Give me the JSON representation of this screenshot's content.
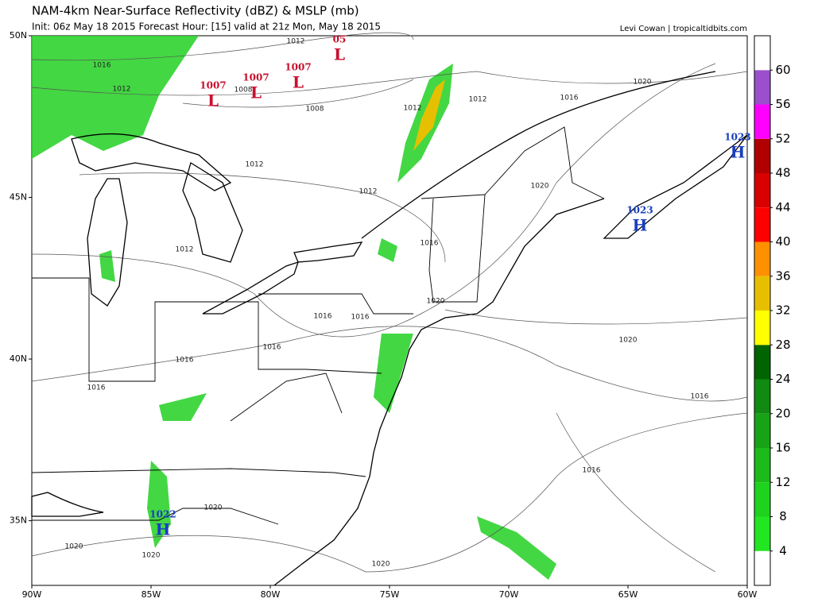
{
  "header": {
    "title": "NAM-4km Near-Surface Reflectivity (dBZ) & MSLP (mb)",
    "subtitle": "Init: 06z May 18 2015   Forecast Hour: [15]   valid at 21z Mon, May 18 2015",
    "credit": "Levi Cowan | tropicaltidbits.com"
  },
  "map": {
    "xlim": [
      -90,
      -60
    ],
    "ylim": [
      33,
      50
    ],
    "xticks": [
      {
        "value": -90,
        "label": "90W"
      },
      {
        "value": -85,
        "label": "85W"
      },
      {
        "value": -80,
        "label": "80W"
      },
      {
        "value": -75,
        "label": "75W"
      },
      {
        "value": -70,
        "label": "70W"
      },
      {
        "value": -65,
        "label": "65W"
      },
      {
        "value": -60,
        "label": "60W"
      }
    ],
    "yticks": [
      {
        "value": 50,
        "label": "50N"
      },
      {
        "value": 45,
        "label": "45N"
      },
      {
        "value": 40,
        "label": "40N"
      },
      {
        "value": 35,
        "label": "35N"
      }
    ]
  },
  "colorbar": {
    "range": [
      0,
      64
    ],
    "ticks": [
      4,
      8,
      12,
      16,
      20,
      24,
      28,
      32,
      36,
      40,
      44,
      48,
      52,
      56,
      60
    ],
    "colors": [
      "#ffffff",
      "#22e622",
      "#1ed21e",
      "#1abb1a",
      "#16a316",
      "#108a10",
      "#006400",
      "#ffff00",
      "#e6c000",
      "#ff9000",
      "#ff0000",
      "#d80000",
      "#b00000",
      "#ff00ff",
      "#9b4fcc",
      "#ffffff"
    ]
  },
  "pressure_centers": [
    {
      "type": "L",
      "value": 1007
    },
    {
      "type": "L",
      "value": 1007
    },
    {
      "type": "L",
      "value": 1007
    },
    {
      "type": "L",
      "value": "05"
    },
    {
      "type": "H",
      "value": 1023
    },
    {
      "type": "H",
      "value": 1023
    },
    {
      "type": "H",
      "value": 1022
    }
  ],
  "contour_labels": [
    1016,
    1012,
    1012,
    1008,
    1008,
    1012,
    1012,
    1012,
    1012,
    1016,
    1020,
    1020,
    1016,
    1012,
    1020,
    1016,
    1016,
    1016,
    1016,
    1016,
    1020,
    1016,
    1016,
    1020,
    1020,
    1020,
    1020
  ]
}
